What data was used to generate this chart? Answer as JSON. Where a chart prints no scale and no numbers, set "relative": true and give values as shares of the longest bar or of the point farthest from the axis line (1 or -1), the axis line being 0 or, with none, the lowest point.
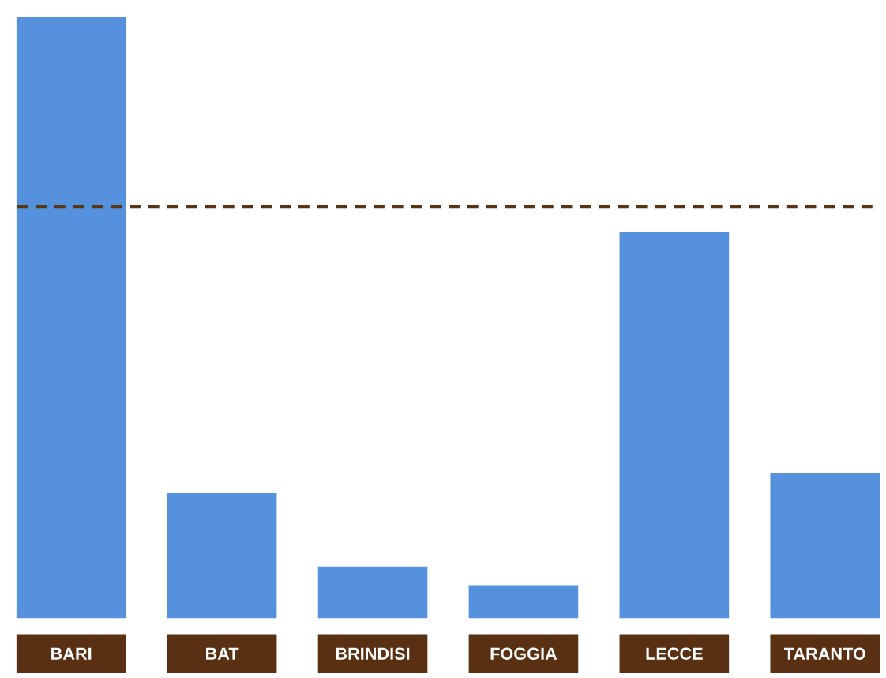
{
  "chart_data": {
    "type": "bar",
    "relative": true,
    "categories": [
      "BARI",
      "BAT",
      "BRINDISI",
      "FOGGIA",
      "LECCE",
      "TARANTO"
    ],
    "values": [
      1,
      0.208,
      0.086,
      0.055,
      0.643,
      0.242
    ],
    "color": "#5591dc",
    "ref_lines": [
      {
        "axis": "y",
        "value": 0.685,
        "color": "#5a3515",
        "line_style": "dashed"
      }
    ]
  }
}
